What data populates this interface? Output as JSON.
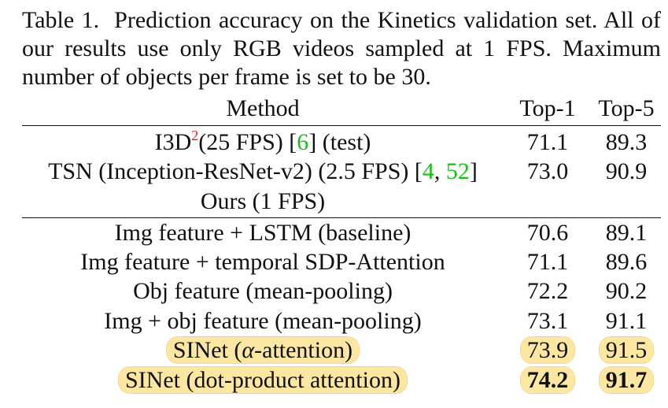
{
  "caption": {
    "label": "Table 1.",
    "text": "Prediction accuracy on the Kinetics validation set. All of our results use only RGB videos sampled at 1 FPS. Maximum number of objects per frame is set to be 30."
  },
  "header": {
    "method": "Method",
    "top1": "Top-1",
    "top5": "Top-5"
  },
  "rows": {
    "i3d": {
      "name": "I3D",
      "sup": "2",
      "suffix": "(25 FPS) [",
      "ref1": "6",
      "tail": "] (test)",
      "top1": "71.1",
      "top5": "89.3"
    },
    "tsn": {
      "name": "TSN (Inception-ResNet-v2) (2.5 FPS) [",
      "ref1": "4",
      "sep": ", ",
      "ref2": "52",
      "tail": "]",
      "top1": "73.0",
      "top5": "90.9"
    },
    "ours_header": "Ours (1 FPS)",
    "r1": {
      "method": "Img feature + LSTM (baseline)",
      "top1": "70.6",
      "top5": "89.1"
    },
    "r2": {
      "method": "Img feature + temporal SDP-Attention",
      "top1": "71.1",
      "top5": "89.6"
    },
    "r3": {
      "method": "Obj feature (mean-pooling)",
      "top1": "72.2",
      "top5": "90.2"
    },
    "r4": {
      "method": "Img + obj feature (mean-pooling)",
      "top1": "73.1",
      "top5": "91.1"
    },
    "r5": {
      "prefix": "SINet (",
      "greek": "α",
      "suffix": "-attention)",
      "top1": "73.9",
      "top5": "91.5"
    },
    "r6": {
      "method": "SINet (dot-product attention)",
      "top1": "74.2",
      "top5": "91.7"
    }
  },
  "colors": {
    "highlight": "#fbe7a1",
    "reference_link": "#16c016",
    "footnote_marker": "#e02020"
  }
}
